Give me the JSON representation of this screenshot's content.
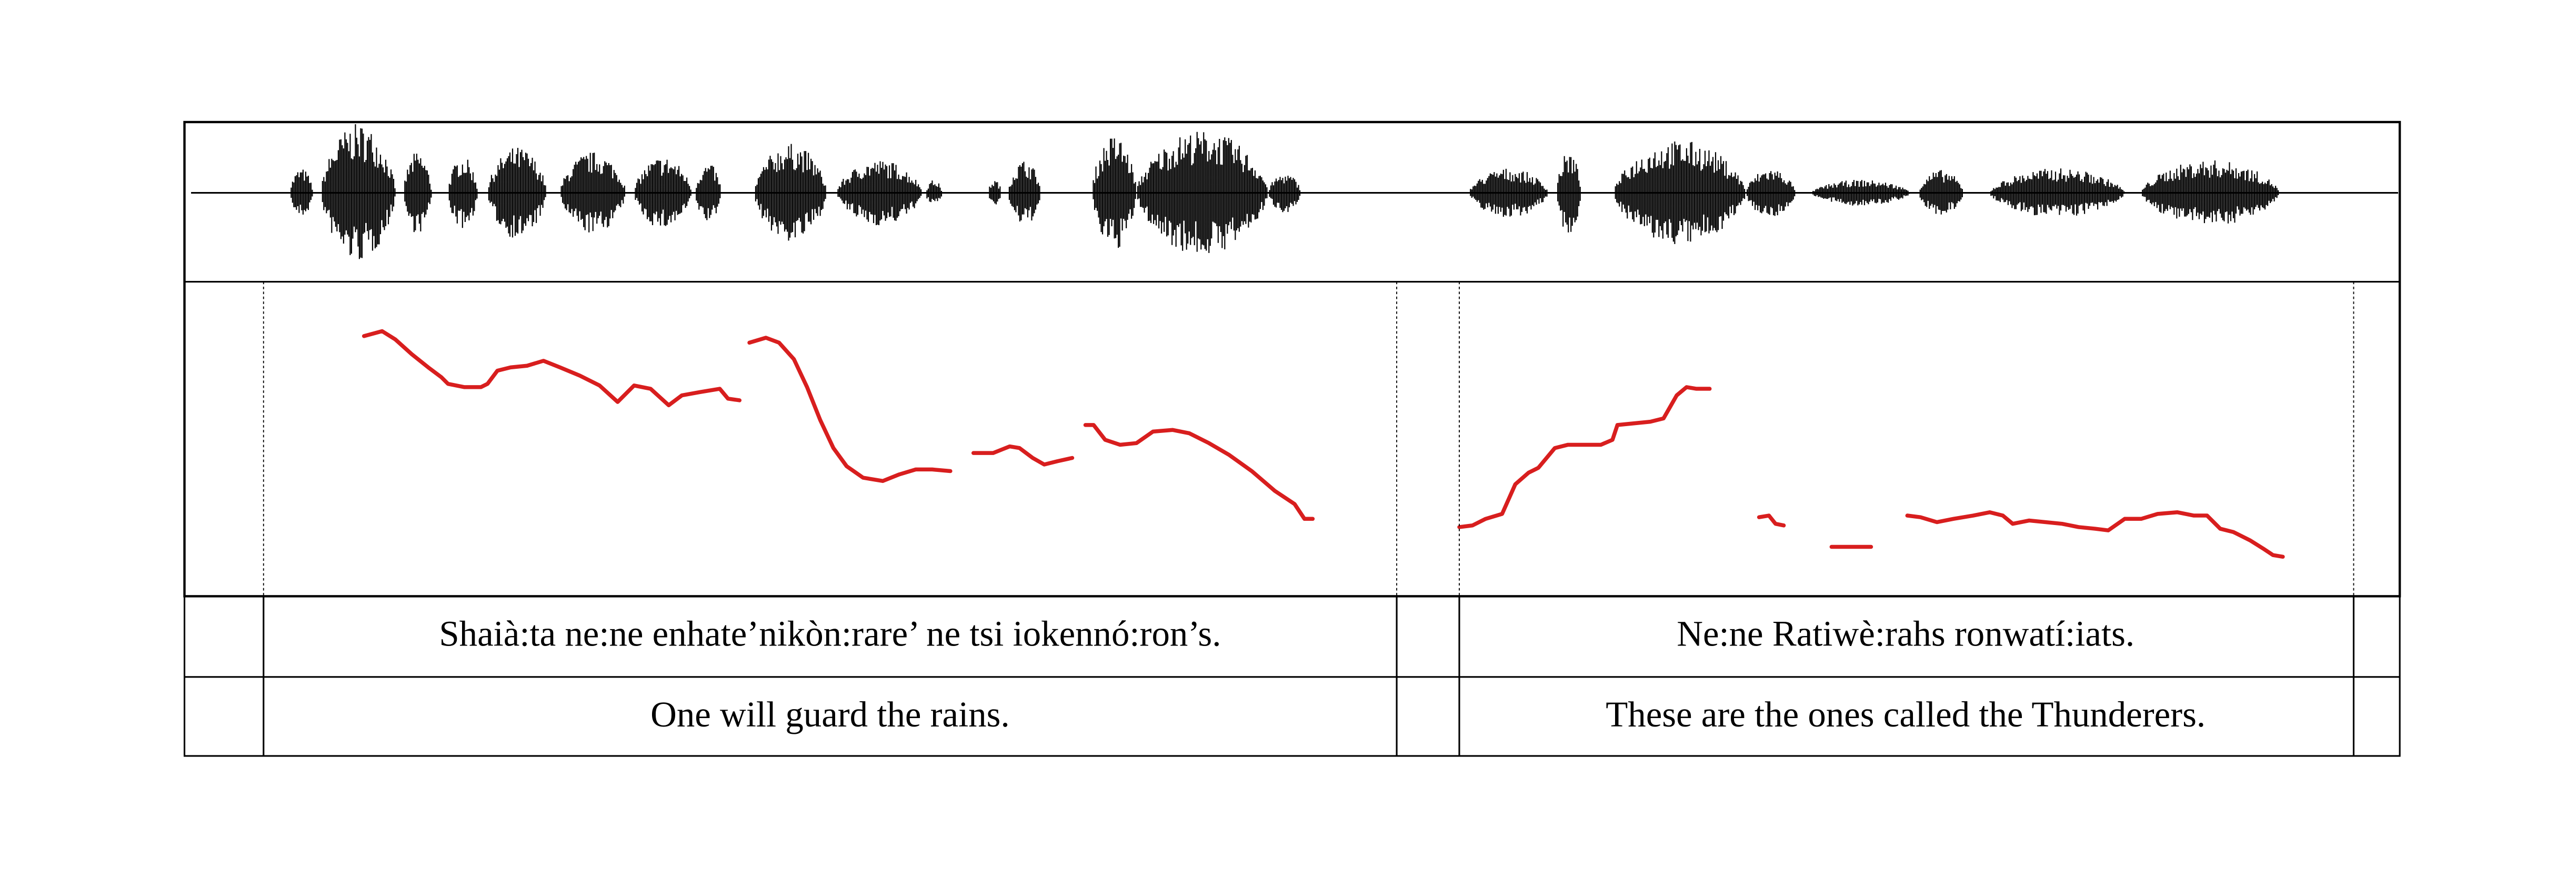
{
  "tiers": {
    "transcription": [
      "Shaià:ta ne:ne enhate’nikòn:rare’ ne tsi iokennó:ron’s.",
      "Ne:ne Ratiwè:rahs ronwatí:iats."
    ],
    "translation": [
      "One will guard the rains.",
      "These are the ones called the Thunderers."
    ]
  }
}
